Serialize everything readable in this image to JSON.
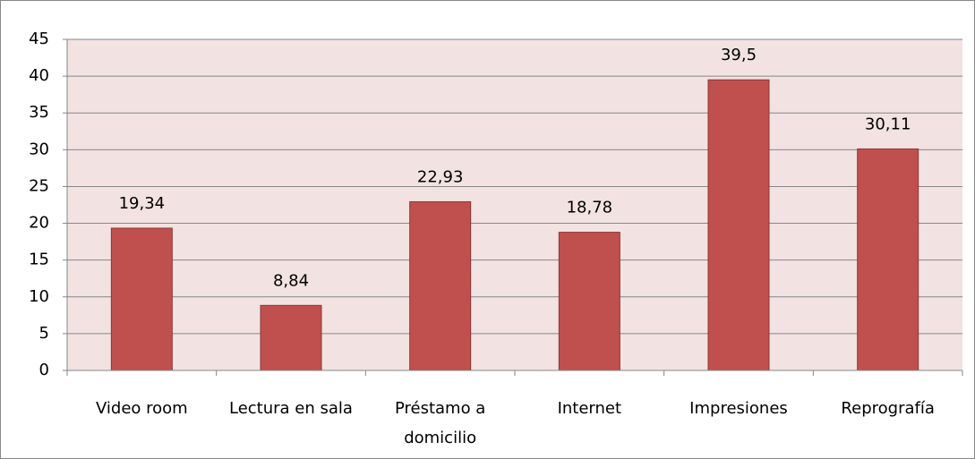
{
  "chart_data": {
    "type": "bar",
    "categories": [
      "Video room",
      "Lectura en sala",
      "Préstamo a domicilio",
      "Internet",
      "Impresiones",
      "Reprografía"
    ],
    "values": [
      19.34,
      8.84,
      22.93,
      18.78,
      39.5,
      30.11
    ],
    "value_labels": [
      "19,34",
      "8,84",
      "22,93",
      "18,78",
      "39,5",
      "30,11"
    ],
    "color": "#c0504d",
    "ylim": [
      0,
      45
    ],
    "yticks": [
      0,
      5,
      10,
      15,
      20,
      25,
      30,
      35,
      40,
      45
    ],
    "grid": true
  }
}
